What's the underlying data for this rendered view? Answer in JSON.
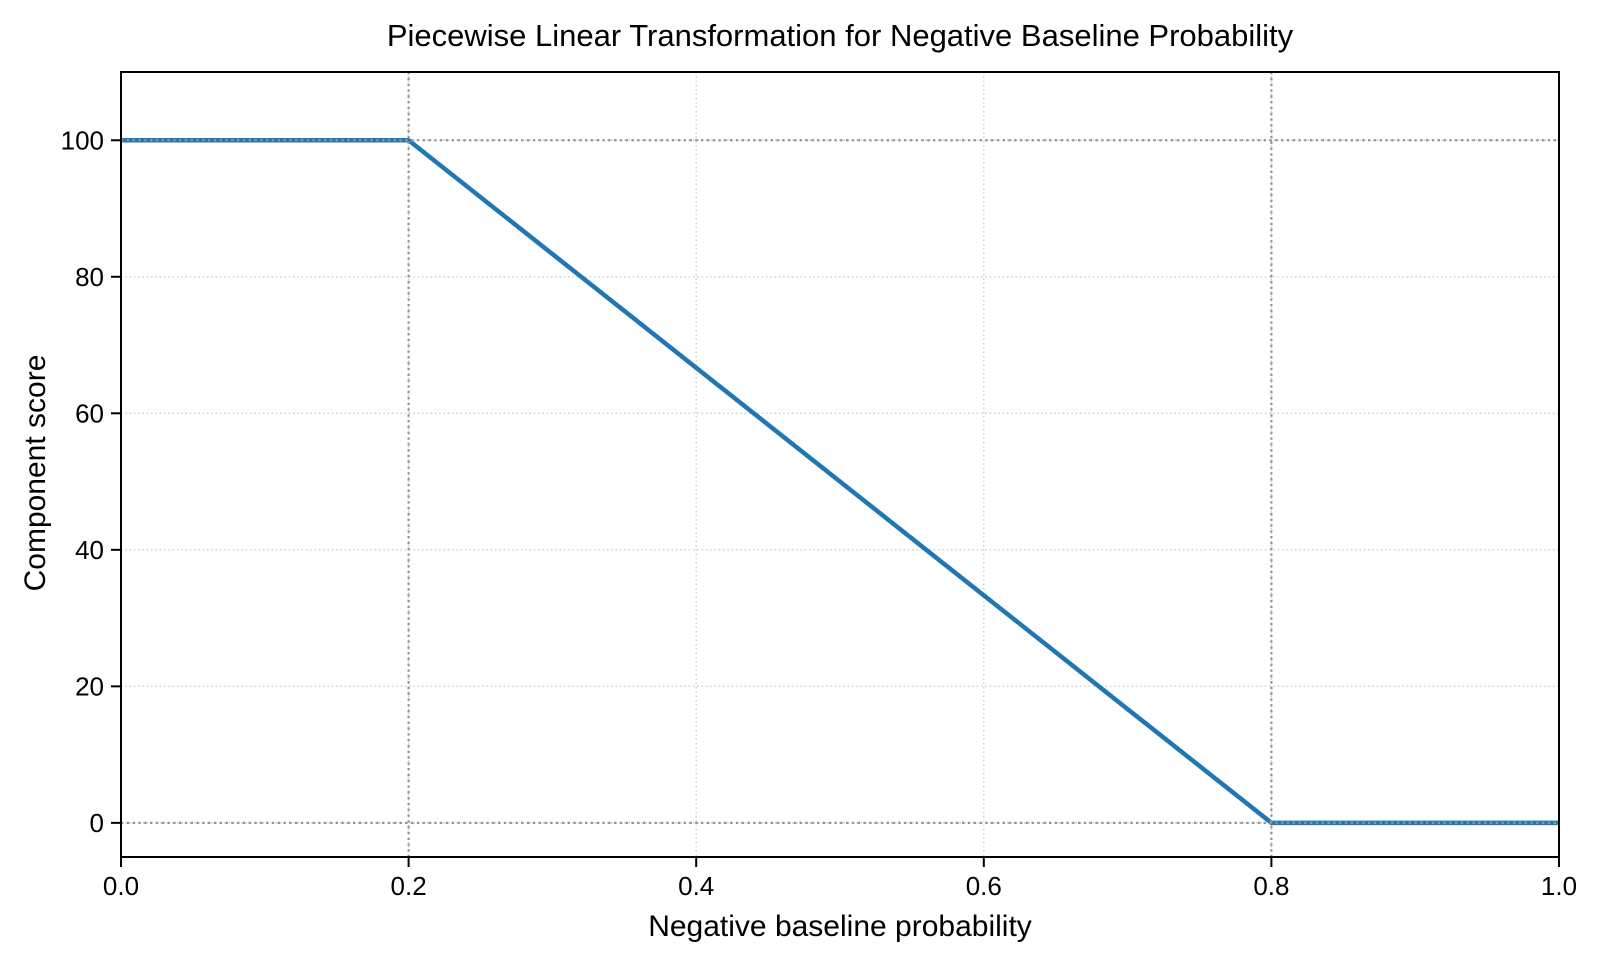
{
  "chart_data": {
    "type": "line",
    "title": "Piecewise Linear Transformation for Negative Baseline Probability",
    "xlabel": "Negative baseline probability",
    "ylabel": "Component score",
    "xlim": [
      0,
      1
    ],
    "ylim": [
      -5,
      110
    ],
    "x_ticks": [
      0.0,
      0.2,
      0.4,
      0.6,
      0.8,
      1.0
    ],
    "x_tick_labels": [
      "0.0",
      "0.2",
      "0.4",
      "0.6",
      "0.8",
      "1.0"
    ],
    "y_ticks": [
      0,
      20,
      40,
      60,
      80,
      100
    ],
    "y_tick_labels": [
      "0",
      "20",
      "40",
      "60",
      "80",
      "100"
    ],
    "series": [
      {
        "name": "component-score",
        "color": "#1f77b4",
        "points": [
          [
            0.0,
            100
          ],
          [
            0.2,
            100
          ],
          [
            0.8,
            0
          ],
          [
            1.0,
            0
          ]
        ]
      }
    ],
    "grid": {
      "on": true,
      "style": "dotted",
      "color": "#cccccc"
    },
    "reference_lines": {
      "x": [
        0.2,
        0.8
      ],
      "y": [
        0,
        100
      ],
      "style": "dotted",
      "color": "#949494"
    },
    "legend": "none",
    "spine_color": "#000000"
  }
}
